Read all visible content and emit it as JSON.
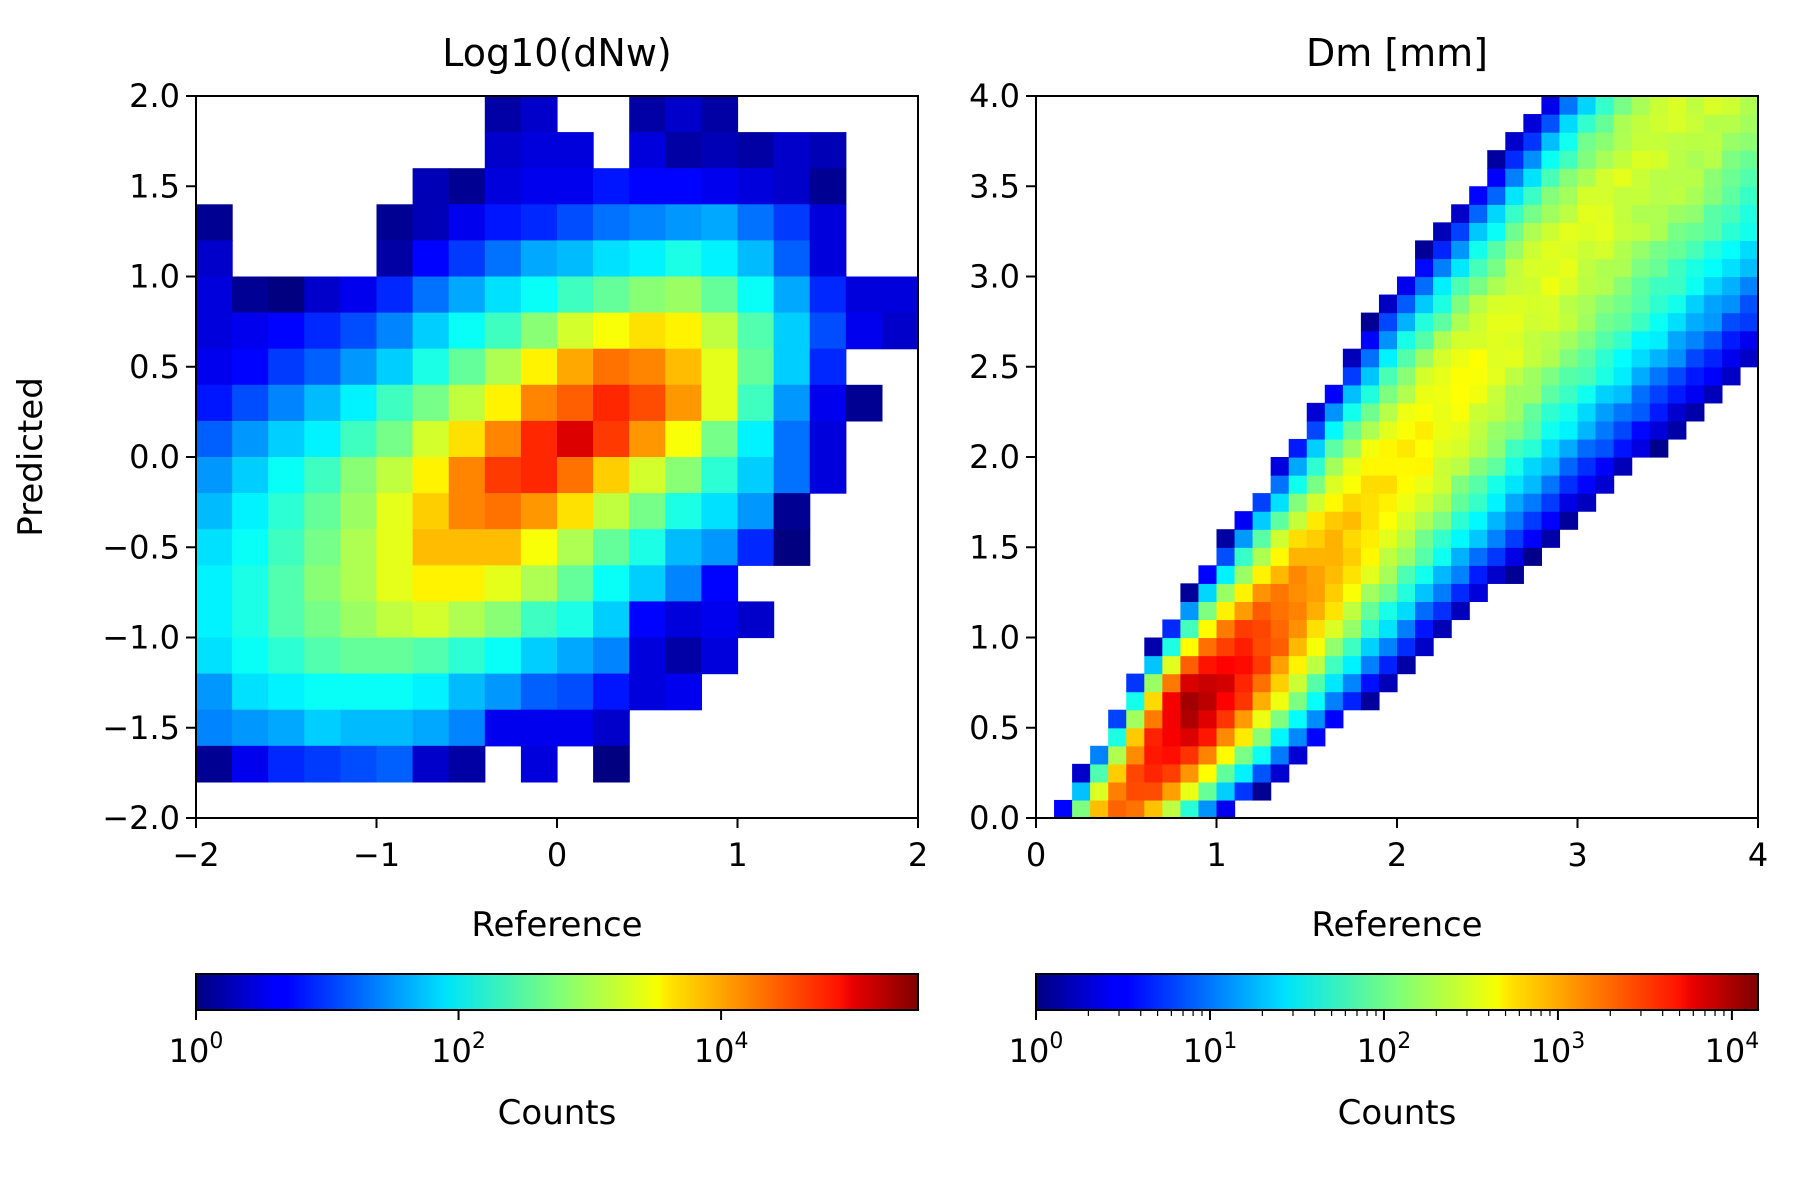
{
  "chart_data": [
    {
      "type": "heatmap",
      "title": "Log10(dNw)",
      "xlabel": "Reference",
      "ylabel": "Predicted",
      "xlim": [
        -2,
        2
      ],
      "ylim": [
        -2,
        2
      ],
      "xticks": [
        -2,
        -1,
        0,
        1,
        2
      ],
      "xticklabels": [
        "−2",
        "−1",
        "0",
        "1",
        "2"
      ],
      "yticks": [
        2.0,
        1.5,
        1.0,
        0.5,
        0.0,
        -0.5,
        -1.0,
        -1.5,
        -2.0
      ],
      "yticklabels": [
        "2.0",
        "1.5",
        "1.0",
        "0.5",
        "0.0",
        "−0.5",
        "−1.0",
        "−1.5",
        "−2.0"
      ],
      "colorscale": "jet",
      "grid": false,
      "bins": 20,
      "log10_count_rows_top_to_bottom": [
        [
          -1,
          -1,
          -1,
          -1,
          -1,
          -1,
          -1,
          -1,
          0.2,
          0.4,
          -1,
          -1,
          0.2,
          0.4,
          0.2,
          -1,
          -1,
          -1,
          -1,
          -1
        ],
        [
          -1,
          -1,
          -1,
          -1,
          -1,
          -1,
          -1,
          -1,
          0.4,
          0.5,
          0.5,
          -1,
          0.5,
          0.2,
          0.3,
          0.2,
          0.4,
          0.3,
          -1,
          -1
        ],
        [
          -1,
          -1,
          -1,
          -1,
          -1,
          -1,
          0.3,
          0.1,
          0.5,
          0.6,
          0.6,
          0.8,
          0.7,
          0.7,
          0.6,
          0.5,
          0.4,
          0.1,
          -1,
          -1
        ],
        [
          0.1,
          -1,
          -1,
          -1,
          -1,
          0.1,
          0.3,
          0.6,
          0.8,
          0.9,
          1.1,
          1.3,
          1.4,
          1.5,
          1.6,
          1.3,
          1.0,
          0.5,
          -1,
          -1
        ],
        [
          0.4,
          -1,
          -1,
          -1,
          -1,
          0.2,
          0.7,
          1.0,
          1.3,
          1.6,
          1.7,
          1.9,
          2.0,
          2.2,
          2.0,
          1.7,
          1.2,
          0.5,
          -1,
          -1
        ],
        [
          0.5,
          0.1,
          0.0,
          0.4,
          0.6,
          0.9,
          1.3,
          1.6,
          1.9,
          2.1,
          2.4,
          2.6,
          2.8,
          2.9,
          2.6,
          2.1,
          1.6,
          0.9,
          0.5,
          0.5
        ],
        [
          0.5,
          0.6,
          0.7,
          0.9,
          1.1,
          1.4,
          1.8,
          2.1,
          2.4,
          2.8,
          3.2,
          3.4,
          3.6,
          3.5,
          3.1,
          2.5,
          1.8,
          1.1,
          0.6,
          0.4
        ],
        [
          0.6,
          0.7,
          1.0,
          1.2,
          1.5,
          1.8,
          2.2,
          2.6,
          3.0,
          3.5,
          3.9,
          4.2,
          4.1,
          3.8,
          3.3,
          2.6,
          1.8,
          0.9,
          -1,
          -1
        ],
        [
          0.8,
          1.1,
          1.4,
          1.7,
          2.0,
          2.4,
          2.7,
          3.1,
          3.5,
          4.1,
          4.3,
          4.6,
          4.4,
          4.0,
          3.3,
          2.4,
          1.5,
          0.6,
          0.1,
          -1
        ],
        [
          1.2,
          1.5,
          1.8,
          2.0,
          2.4,
          2.7,
          3.2,
          3.6,
          4.1,
          4.6,
          5.0,
          4.5,
          4.0,
          3.4,
          2.7,
          2.0,
          1.3,
          0.5,
          -1,
          -1
        ],
        [
          1.5,
          1.8,
          2.1,
          2.4,
          2.8,
          3.1,
          3.5,
          4.1,
          4.5,
          4.6,
          4.2,
          3.7,
          3.2,
          2.8,
          2.3,
          1.8,
          1.3,
          0.5,
          -1,
          -1
        ],
        [
          1.7,
          2.0,
          2.3,
          2.6,
          2.9,
          3.3,
          3.7,
          4.1,
          4.2,
          4.0,
          3.6,
          3.1,
          2.7,
          2.2,
          1.9,
          1.5,
          0.1,
          -1,
          -1,
          -1
        ],
        [
          1.9,
          2.1,
          2.4,
          2.7,
          3.0,
          3.3,
          3.8,
          3.8,
          3.8,
          3.4,
          3.0,
          2.6,
          2.2,
          1.7,
          1.5,
          0.9,
          0.0,
          -1,
          -1,
          -1
        ],
        [
          2.0,
          2.2,
          2.5,
          2.8,
          3.0,
          3.3,
          3.5,
          3.5,
          3.3,
          3.0,
          2.6,
          2.1,
          1.8,
          1.4,
          0.7,
          -1,
          -1,
          -1,
          -1,
          -1
        ],
        [
          2.0,
          2.2,
          2.5,
          2.7,
          2.9,
          3.1,
          3.2,
          3.0,
          2.8,
          2.4,
          2.2,
          1.8,
          0.7,
          0.5,
          0.6,
          0.4,
          -1,
          -1,
          -1,
          -1
        ],
        [
          1.9,
          2.1,
          2.3,
          2.5,
          2.6,
          2.6,
          2.5,
          2.3,
          2.1,
          1.8,
          1.6,
          1.4,
          0.5,
          0.2,
          0.5,
          -1,
          -1,
          -1,
          -1,
          -1
        ],
        [
          1.5,
          1.9,
          2.0,
          2.1,
          2.1,
          2.1,
          2.0,
          1.7,
          1.5,
          1.2,
          1.1,
          0.8,
          0.5,
          0.6,
          -1,
          -1,
          -1,
          -1,
          -1,
          -1
        ],
        [
          1.4,
          1.5,
          1.6,
          1.8,
          1.7,
          1.7,
          1.6,
          1.4,
          0.6,
          0.6,
          0.6,
          0.4,
          -1,
          -1,
          -1,
          -1,
          -1,
          -1,
          -1,
          -1
        ],
        [
          0.1,
          0.6,
          0.9,
          1.0,
          1.1,
          1.2,
          0.4,
          0.2,
          -1,
          0.5,
          -1,
          0.0,
          -1,
          -1,
          -1,
          -1,
          -1,
          -1,
          -1,
          -1
        ],
        [
          -1,
          -1,
          -1,
          -1,
          -1,
          -1,
          -1,
          -1,
          -1,
          -1,
          -1,
          -1,
          -1,
          -1,
          -1,
          -1,
          -1,
          -1,
          -1,
          -1
        ]
      ],
      "colorbar": {
        "label": "Counts",
        "scale": "log",
        "range_log10": [
          0,
          5.5
        ],
        "ticks_log10": [
          0,
          2,
          4
        ],
        "tick_base": "10",
        "tick_exponents": [
          "0",
          "2",
          "4"
        ]
      }
    },
    {
      "type": "heatmap",
      "title": "Dm [mm]",
      "xlabel": "Reference",
      "ylabel": "",
      "xlim": [
        0,
        4
      ],
      "ylim": [
        0,
        4
      ],
      "xticks": [
        0,
        1,
        2,
        3,
        4
      ],
      "xticklabels": [
        "0",
        "1",
        "2",
        "3",
        "4"
      ],
      "yticks": [
        4.0,
        3.5,
        3.0,
        2.5,
        2.0,
        1.5,
        1.0,
        0.5,
        0.0
      ],
      "yticklabels": [
        "4.0",
        "3.5",
        "3.0",
        "2.5",
        "2.0",
        "1.5",
        "1.0",
        "0.5",
        "0.0"
      ],
      "colorscale": "jet",
      "grid": false,
      "bins": 40,
      "ridge": {
        "x_start": 0.45,
        "x_end": 3.6,
        "y_start": 0.0,
        "y_end": 4.0,
        "peak_x": 0.8,
        "peak_y": 0.7
      },
      "colorbar": {
        "label": "Counts",
        "scale": "log",
        "range_log10": [
          0,
          4.15
        ],
        "ticks_log10": [
          0,
          1,
          2,
          3,
          4
        ],
        "tick_base": "10",
        "tick_exponents": [
          "0",
          "1",
          "2",
          "3",
          "4"
        ]
      }
    }
  ]
}
